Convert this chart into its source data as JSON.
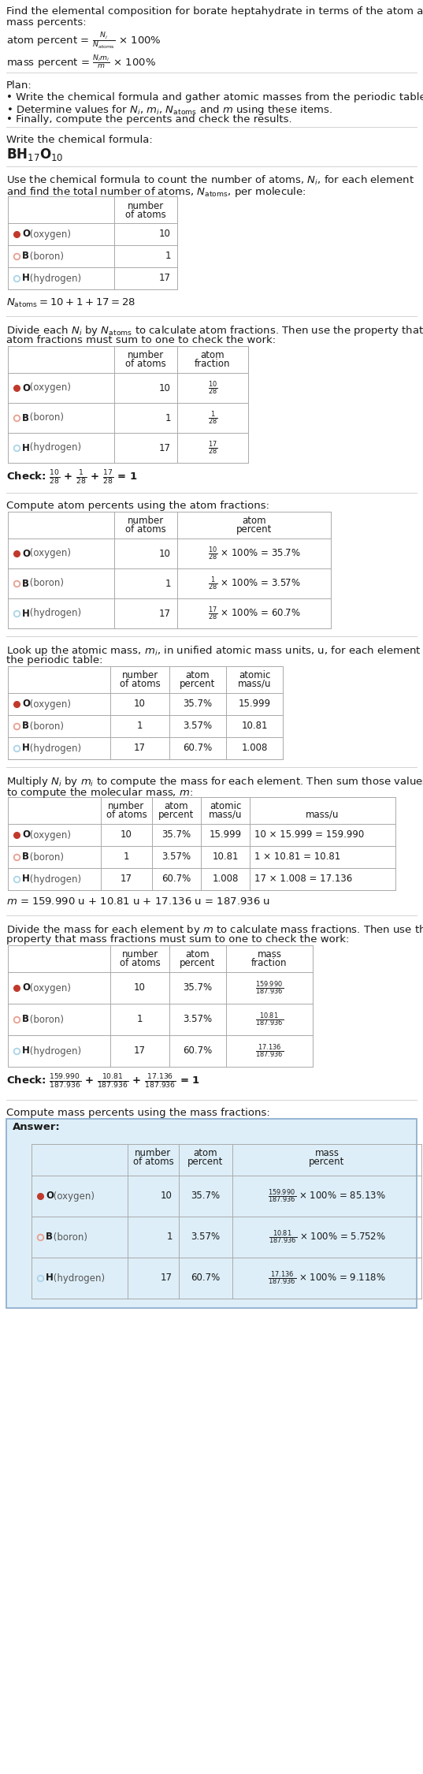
{
  "bg_color": "#ffffff",
  "text_color": "#1a1a1a",
  "gray_text": "#555555",
  "table_border_color": "#aaaaaa",
  "section_line_color": "#cccccc",
  "answer_bg": "#ddeef8",
  "answer_border": "#88aacc",
  "element_colors": {
    "O": "#c0392b",
    "B": "#e8a090",
    "H": "#aad4e8"
  },
  "elem_info": [
    [
      "O",
      "O (oxygen)"
    ],
    [
      "B",
      "B (boron)"
    ],
    [
      "H",
      "H (hydrogen)"
    ]
  ],
  "table1_rows": [
    [
      "O (oxygen)",
      "10"
    ],
    [
      "B (boron)",
      "1"
    ],
    [
      "H (hydrogen)",
      "17"
    ]
  ],
  "table2_rows": [
    [
      "O (oxygen)",
      "10",
      "$\\frac{10}{28}$"
    ],
    [
      "B (boron)",
      "1",
      "$\\frac{1}{28}$"
    ],
    [
      "H (hydrogen)",
      "17",
      "$\\frac{17}{28}$"
    ]
  ],
  "table3_rows": [
    [
      "O (oxygen)",
      "10",
      "$\\frac{10}{28}$ × 100% = 35.7%"
    ],
    [
      "B (boron)",
      "1",
      "$\\frac{1}{28}$ × 100% = 3.57%"
    ],
    [
      "H (hydrogen)",
      "17",
      "$\\frac{17}{28}$ × 100% = 60.7%"
    ]
  ],
  "table4_rows": [
    [
      "O (oxygen)",
      "10",
      "35.7%",
      "15.999"
    ],
    [
      "B (boron)",
      "1",
      "3.57%",
      "10.81"
    ],
    [
      "H (hydrogen)",
      "17",
      "60.7%",
      "1.008"
    ]
  ],
  "table5_rows": [
    [
      "O (oxygen)",
      "10",
      "35.7%",
      "15.999",
      "10 × 15.999 = 159.990"
    ],
    [
      "B (boron)",
      "1",
      "3.57%",
      "10.81",
      "1 × 10.81 = 10.81"
    ],
    [
      "H (hydrogen)",
      "17",
      "60.7%",
      "1.008",
      "17 × 1.008 = 17.136"
    ]
  ],
  "table6_rows": [
    [
      "O (oxygen)",
      "10",
      "35.7%",
      "$\\frac{159.990}{187.936}$"
    ],
    [
      "B (boron)",
      "1",
      "3.57%",
      "$\\frac{10.81}{187.936}$"
    ],
    [
      "H (hydrogen)",
      "17",
      "60.7%",
      "$\\frac{17.136}{187.936}$"
    ]
  ],
  "table7_rows": [
    [
      "O (oxygen)",
      "10",
      "35.7%",
      "$\\frac{159.990}{187.936}$ × 100% = 85.13%"
    ],
    [
      "B (boron)",
      "1",
      "3.57%",
      "$\\frac{10.81}{187.936}$ × 100% = 5.752%"
    ],
    [
      "H (hydrogen)",
      "17",
      "60.7%",
      "$\\frac{17.136}{187.936}$ × 100% = 9.118%"
    ]
  ]
}
